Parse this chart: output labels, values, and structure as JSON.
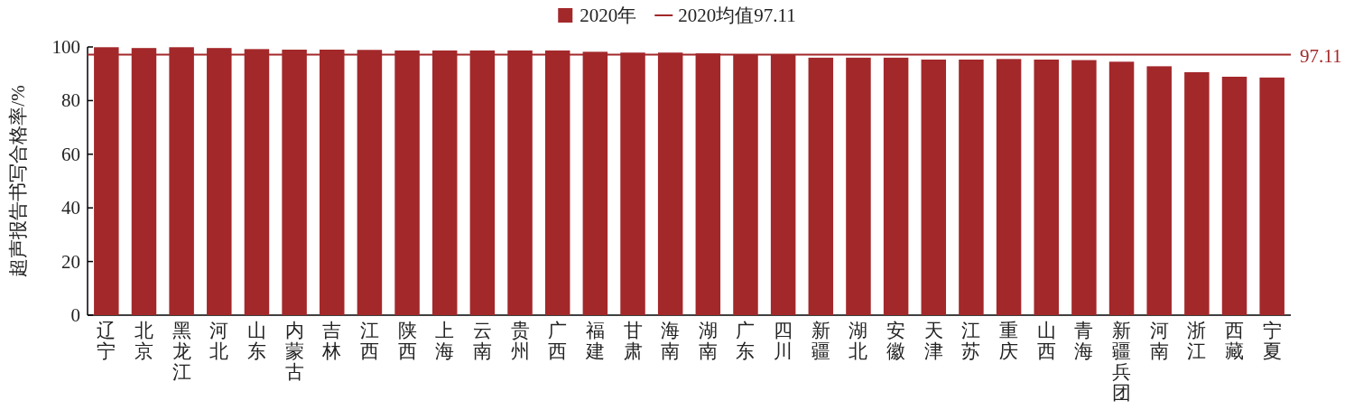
{
  "chart_data": {
    "type": "bar",
    "ylabel": "超声报告书写合格率/%",
    "categories": [
      "辽宁",
      "北京",
      "黑龙江",
      "河北",
      "山东",
      "内蒙古",
      "吉林",
      "江西",
      "陕西",
      "上海",
      "云南",
      "贵州",
      "广西",
      "福建",
      "甘肃",
      "海南",
      "湖南",
      "广东",
      "四川",
      "新疆",
      "湖北",
      "安徽",
      "天津",
      "江苏",
      "重庆",
      "山西",
      "青海",
      "新疆兵团",
      "河南",
      "浙江",
      "西藏",
      "宁夏"
    ],
    "series": [
      {
        "name": "2020年",
        "color": "#a3282a",
        "values": [
          99.9,
          99.6,
          99.9,
          99.6,
          99.2,
          99.0,
          99.0,
          98.9,
          98.7,
          98.7,
          98.7,
          98.7,
          98.7,
          98.2,
          97.9,
          97.9,
          97.6,
          97.3,
          97.3,
          96.0,
          96.0,
          96.0,
          95.3,
          95.3,
          95.5,
          95.3,
          95.1,
          94.5,
          92.8,
          90.6,
          88.9,
          88.6
        ]
      }
    ],
    "ref_lines": [
      {
        "axis": "y",
        "value": 97.11,
        "label": "2020均值97.11",
        "color": "#a3282a"
      }
    ],
    "annotations": [
      "97.11"
    ],
    "ylim": [
      0,
      100
    ],
    "yticks": [
      0,
      20,
      40,
      60,
      80,
      100
    ],
    "grid": false,
    "legend": "top"
  }
}
